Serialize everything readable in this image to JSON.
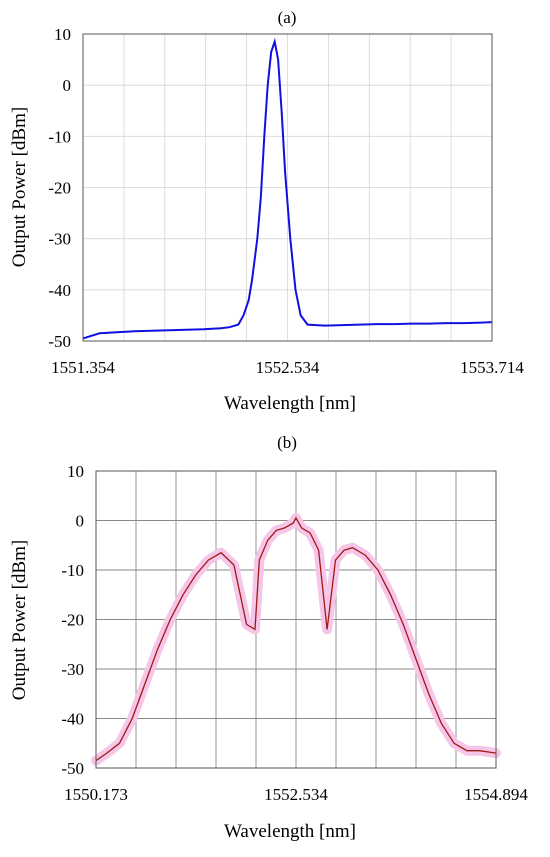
{
  "chart_data": [
    {
      "type": "line",
      "title": "(a)",
      "xlabel": "Wavelength [nm]",
      "ylabel": "Output Power [dBm]",
      "xlim": [
        1551.354,
        1553.714
      ],
      "ylim": [
        -50,
        10
      ],
      "xticks": [
        "1551.354",
        "1552.534",
        "1553.714"
      ],
      "yticks": [
        "10",
        "0",
        "-10",
        "-20",
        "-30",
        "-40",
        "-50"
      ],
      "grid": true,
      "series": [
        {
          "color": "#1010e0",
          "x": [
            1551.354,
            1551.45,
            1551.55,
            1551.65,
            1551.75,
            1551.85,
            1551.95,
            1552.05,
            1552.15,
            1552.2,
            1552.25,
            1552.28,
            1552.31,
            1552.33,
            1552.36,
            1552.38,
            1552.4,
            1552.42,
            1552.44,
            1552.46,
            1552.48,
            1552.5,
            1552.52,
            1552.55,
            1552.58,
            1552.61,
            1552.65,
            1552.75,
            1552.85,
            1552.95,
            1553.05,
            1553.15,
            1553.25,
            1553.35,
            1553.45,
            1553.55,
            1553.65,
            1553.714
          ],
          "values": [
            -49.5,
            -48.5,
            -48.3,
            -48.1,
            -48.0,
            -47.9,
            -47.8,
            -47.7,
            -47.5,
            -47.3,
            -46.8,
            -45.0,
            -42.0,
            -38.0,
            -30.0,
            -22.0,
            -10.0,
            0.0,
            6.5,
            8.5,
            5.0,
            -5.0,
            -17.0,
            -30.0,
            -40.0,
            -45.0,
            -46.8,
            -47.0,
            -46.9,
            -46.8,
            -46.7,
            -46.7,
            -46.6,
            -46.6,
            -46.5,
            -46.5,
            -46.4,
            -46.3
          ]
        }
      ]
    },
    {
      "type": "line",
      "title": "(b)",
      "xlabel": "Wavelength [nm]",
      "ylabel": "Output Power [dBm]",
      "xlim": [
        1550.173,
        1554.894
      ],
      "ylim": [
        -50,
        10
      ],
      "xticks": [
        "1550.173",
        "1552.534",
        "1554.894"
      ],
      "yticks": [
        "10",
        "0",
        "-10",
        "-20",
        "-30",
        "-40",
        "-50"
      ],
      "grid": true,
      "series": [
        {
          "color": "#a01818",
          "x": [
            1550.173,
            1550.3,
            1550.45,
            1550.6,
            1550.75,
            1550.9,
            1551.05,
            1551.2,
            1551.35,
            1551.5,
            1551.65,
            1551.8,
            1551.95,
            1552.05,
            1552.1,
            1552.2,
            1552.3,
            1552.4,
            1552.5,
            1552.534,
            1552.6,
            1552.7,
            1552.8,
            1552.9,
            1553.0,
            1553.1,
            1553.2,
            1553.35,
            1553.5,
            1553.65,
            1553.8,
            1553.95,
            1554.1,
            1554.25,
            1554.4,
            1554.55,
            1554.7,
            1554.894
          ],
          "values": [
            -48.5,
            -47.0,
            -45.0,
            -40.0,
            -33.0,
            -26.0,
            -20.0,
            -15.0,
            -11.0,
            -8.0,
            -6.5,
            -9.0,
            -21.0,
            -22.0,
            -8.0,
            -4.0,
            -2.0,
            -1.5,
            -0.5,
            0.5,
            -1.5,
            -2.5,
            -6.0,
            -22.0,
            -8.0,
            -6.0,
            -5.5,
            -7.0,
            -10.0,
            -15.0,
            -21.0,
            -28.0,
            -35.0,
            -41.0,
            -45.0,
            -46.5,
            -46.5,
            -47.0
          ]
        }
      ]
    }
  ]
}
